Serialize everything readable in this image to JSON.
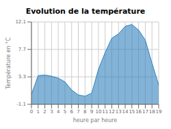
{
  "chart_data": {
    "type": "area",
    "title": "Evolution de la température",
    "xlabel": "heure par heure",
    "ylabel": "Température en °C",
    "x": [
      0,
      1,
      2,
      3,
      4,
      5,
      6,
      7,
      8,
      9,
      10,
      11,
      12,
      13,
      14,
      15,
      16,
      17,
      18,
      19
    ],
    "values": [
      0.5,
      3.5,
      3.6,
      3.4,
      3.1,
      2.5,
      1.2,
      0.4,
      0.2,
      0.7,
      4.5,
      7.2,
      9.5,
      10.2,
      11.4,
      11.7,
      10.8,
      9.2,
      5.5,
      2.0
    ],
    "xlim": [
      0,
      19
    ],
    "ylim": [
      -1.1,
      12.1
    ],
    "xticks": [
      0,
      1,
      2,
      3,
      4,
      5,
      6,
      7,
      8,
      9,
      10,
      11,
      12,
      13,
      14,
      15,
      16,
      17,
      18,
      19
    ],
    "yticks": [
      -1.1,
      3.3,
      7.7,
      12.1
    ],
    "grid": true
  }
}
